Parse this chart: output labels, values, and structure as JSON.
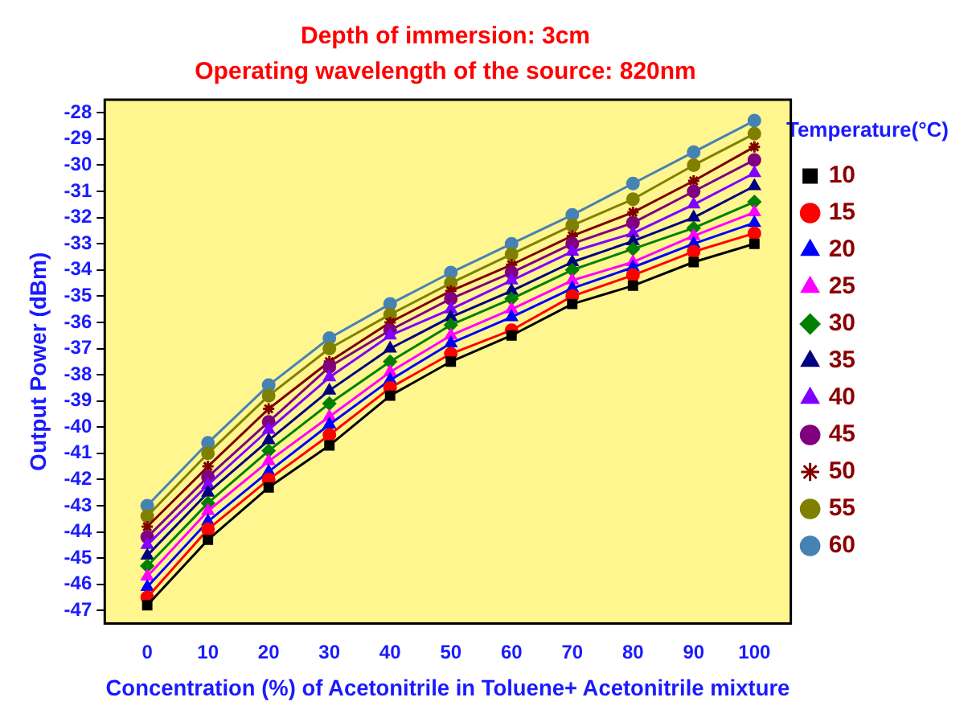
{
  "chart_data": {
    "type": "line",
    "title": "Depth of immersion: 3cm",
    "subtitle": "Operating wavelength of the source: 820nm",
    "xlabel": "Concentration (%) of Acetonitrile in Toluene+ Acetonitrile mixture",
    "ylabel": "Output Power (dBm)",
    "legend_title": "Temperature(°C)",
    "legend": "right",
    "grid": false,
    "x": [
      0,
      10,
      20,
      30,
      40,
      50,
      60,
      70,
      80,
      90,
      100
    ],
    "xlim": [
      -7,
      106
    ],
    "xticks": [
      0,
      10,
      20,
      30,
      40,
      50,
      60,
      70,
      80,
      90,
      100
    ],
    "ylim": [
      -47.5,
      -27.5
    ],
    "yticks": [
      -47,
      -46,
      -45,
      -44,
      -43,
      -42,
      -41,
      -40,
      -39,
      -38,
      -37,
      -36,
      -35,
      -34,
      -33,
      -32,
      -31,
      -30,
      -29,
      -28
    ],
    "series": [
      {
        "name": "10",
        "color": "#000000",
        "marker": "square",
        "values": [
          -46.8,
          -44.3,
          -42.3,
          -40.7,
          -38.8,
          -37.5,
          -36.5,
          -35.3,
          -34.6,
          -33.7,
          -33.0
        ]
      },
      {
        "name": "15",
        "color": "#ff0000",
        "marker": "circle",
        "values": [
          -46.5,
          -43.9,
          -42.0,
          -40.3,
          -38.5,
          -37.2,
          -36.3,
          -35.0,
          -34.2,
          -33.3,
          -32.6
        ]
      },
      {
        "name": "20",
        "color": "#0000ff",
        "marker": "triangle",
        "values": [
          -46.1,
          -43.6,
          -41.7,
          -39.9,
          -38.2,
          -36.8,
          -35.8,
          -34.7,
          -33.9,
          -33.0,
          -32.2
        ]
      },
      {
        "name": "25",
        "color": "#ff00ff",
        "marker": "triangle",
        "values": [
          -45.7,
          -43.2,
          -41.3,
          -39.6,
          -37.9,
          -36.5,
          -35.5,
          -34.4,
          -33.7,
          -32.7,
          -31.8
        ]
      },
      {
        "name": "30",
        "color": "#008000",
        "marker": "diamond",
        "values": [
          -45.3,
          -42.9,
          -40.9,
          -39.1,
          -37.5,
          -36.1,
          -35.1,
          -34.0,
          -33.2,
          -32.4,
          -31.4
        ]
      },
      {
        "name": "35",
        "color": "#000080",
        "marker": "triangle",
        "values": [
          -44.9,
          -42.5,
          -40.5,
          -38.6,
          -37.0,
          -35.8,
          -34.8,
          -33.7,
          -32.9,
          -32.0,
          -30.8
        ]
      },
      {
        "name": "40",
        "color": "#8000ff",
        "marker": "triangle",
        "values": [
          -44.5,
          -42.2,
          -40.1,
          -38.1,
          -36.5,
          -35.5,
          -34.4,
          -33.3,
          -32.6,
          -31.5,
          -30.3
        ]
      },
      {
        "name": "45",
        "color": "#800080",
        "marker": "circle",
        "values": [
          -44.2,
          -41.9,
          -39.8,
          -37.7,
          -36.3,
          -35.1,
          -34.1,
          -33.0,
          -32.2,
          -31.0,
          -29.8
        ]
      },
      {
        "name": "50",
        "color": "#800000",
        "marker": "cross",
        "values": [
          -43.8,
          -41.5,
          -39.3,
          -37.5,
          -36.0,
          -34.8,
          -33.8,
          -32.7,
          -31.8,
          -30.6,
          -29.3
        ]
      },
      {
        "name": "55",
        "color": "#808000",
        "marker": "circle",
        "values": [
          -43.4,
          -41.0,
          -38.8,
          -37.0,
          -35.7,
          -34.5,
          -33.4,
          -32.3,
          -31.3,
          -30.0,
          -28.8
        ]
      },
      {
        "name": "60",
        "color": "#4682b4",
        "marker": "circle",
        "values": [
          -43.0,
          -40.6,
          -38.4,
          -36.6,
          -35.3,
          -34.1,
          -33.0,
          -31.9,
          -30.7,
          -29.5,
          -28.3
        ]
      }
    ]
  }
}
